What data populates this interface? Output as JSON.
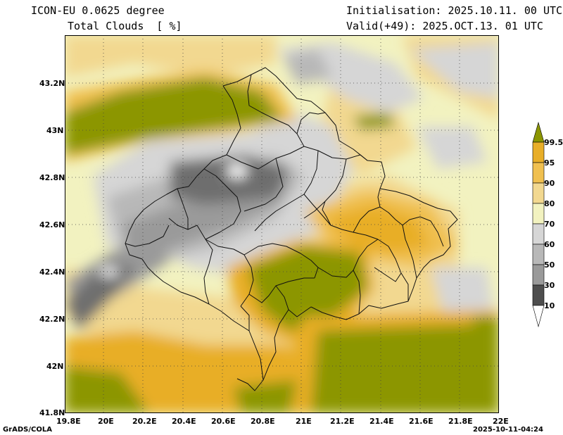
{
  "header": {
    "model": "ICON-EU 0.0625 degree",
    "field": "Total Clouds  [ %]",
    "init": "Initialisation: 2025.10.11. 00 UTC",
    "valid": "Valid(+49): 2025.OCT.13. 01 UTC"
  },
  "axes": {
    "lat_labels": [
      "43.2N",
      "43N",
      "42.8N",
      "42.6N",
      "42.4N",
      "42.2N",
      "42N",
      "41.8N"
    ],
    "lon_labels": [
      "19.8E",
      "20E",
      "20.2E",
      "20.4E",
      "20.6E",
      "20.8E",
      "21E",
      "21.2E",
      "21.4E",
      "21.6E",
      "21.8E",
      "22E"
    ]
  },
  "legend": {
    "labels": [
      "99.5",
      "95",
      "90",
      "80",
      "70",
      "60",
      "50",
      "30",
      "10"
    ],
    "colors": [
      "#8c9600",
      "#e8ae28",
      "#f0c050",
      "#f2d890",
      "#f2f2c0",
      "#d6d6d6",
      "#b8b8b8",
      "#9a9a9a",
      "#6e6e6e",
      "#4e4e4e",
      "#ffffff"
    ]
  },
  "footer": {
    "left": "GrADS/COLA",
    "right": "2025-10-11-04:24"
  }
}
